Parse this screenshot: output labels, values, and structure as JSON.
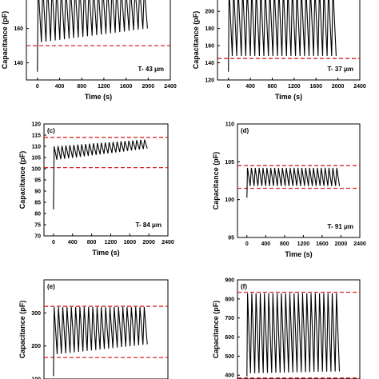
{
  "chart_data": [
    {
      "panel": "",
      "type": "line",
      "xlabel": "Time (s)",
      "ylabel": "Capacitance (pF)",
      "xlim": [
        -200,
        2400
      ],
      "ylim": [
        130,
        185
      ],
      "xticks": [
        "0",
        "400",
        "800",
        "1200",
        "1600",
        "2000",
        "2400"
      ],
      "yticks": [
        "140",
        "160"
      ],
      "annotation": "T- 43 μm",
      "reference_lines": [
        150
      ],
      "signal": {
        "start": 135,
        "low_start": 152,
        "low_end": 160,
        "high_start": 185,
        "high_end": 184,
        "cycles": 24,
        "x_start": 0,
        "x_end": 2000
      }
    },
    {
      "panel": "",
      "type": "line",
      "xlabel": "Time (s)",
      "ylabel": "Capacitance (pF)",
      "xlim": [
        -200,
        2400
      ],
      "ylim": [
        120,
        230
      ],
      "xticks": [
        "0",
        "400",
        "800",
        "1200",
        "1600",
        "2000",
        "2400"
      ],
      "yticks": [
        "120",
        "140",
        "160",
        "180",
        "200"
      ],
      "annotation": "T- 37 μm",
      "reference_lines": [
        145
      ],
      "signal": {
        "start": 130,
        "low_start": 148,
        "low_end": 148,
        "high_start": 228,
        "high_end": 228,
        "cycles": 24,
        "x_start": 0,
        "x_end": 1980
      }
    },
    {
      "panel": "(c)",
      "type": "line",
      "xlabel": "Time (s)",
      "ylabel": "Capacitance (pF)",
      "xlim": [
        -200,
        2400
      ],
      "ylim": [
        70,
        120
      ],
      "xticks": [
        "0",
        "400",
        "800",
        "1200",
        "1600",
        "2000",
        "2400"
      ],
      "yticks": [
        "70",
        "75",
        "80",
        "85",
        "90",
        "95",
        "100",
        "105",
        "110",
        "115",
        "120"
      ],
      "annotation": "T- 84 μm",
      "reference_lines": [
        114,
        100.5
      ],
      "signal": {
        "start": 82,
        "low_start": 104,
        "low_end": 109,
        "high_start": 110,
        "high_end": 113,
        "cycles": 24,
        "x_start": 0,
        "x_end": 1980
      }
    },
    {
      "panel": "(d)",
      "type": "line",
      "xlabel": "Time (s)",
      "ylabel": "Capacitance (pF)",
      "xlim": [
        -200,
        2400
      ],
      "ylim": [
        95,
        110
      ],
      "xticks": [
        "0",
        "400",
        "800",
        "1200",
        "1600",
        "2000",
        "2400"
      ],
      "yticks": [
        "95",
        "100",
        "105",
        "110"
      ],
      "annotation": "T- 91 μm",
      "reference_lines": [
        104.5,
        101.5
      ],
      "signal": {
        "start": 100.3,
        "low_start": 101.8,
        "low_end": 101.8,
        "high_start": 104.2,
        "high_end": 104.2,
        "cycles": 24,
        "x_start": 0,
        "x_end": 1980
      }
    },
    {
      "panel": "(e)",
      "type": "line",
      "xlabel": "",
      "ylabel": "Capacitance (pF)",
      "xlim": [
        -200,
        2400
      ],
      "ylim": [
        100,
        400
      ],
      "xticks": [],
      "yticks": [
        "300",
        "200",
        "100"
      ],
      "annotation": "",
      "reference_lines": [
        320,
        165
      ],
      "signal": {
        "start": 110,
        "low_start": 175,
        "low_end": 205,
        "high_start": 318,
        "high_end": 318,
        "cycles": 22,
        "x_start": 0,
        "x_end": 1980
      }
    },
    {
      "panel": "(f)",
      "type": "line",
      "xlabel": "",
      "ylabel": "Capacitance (pF)",
      "xlim": [
        -200,
        2400
      ],
      "ylim": [
        380,
        900
      ],
      "xticks": [],
      "yticks": [
        "900",
        "800",
        "700",
        "600",
        "500",
        "400"
      ],
      "annotation": "",
      "reference_lines": [
        835,
        385
      ],
      "signal": {
        "start": 395,
        "low_start": 410,
        "low_end": 420,
        "high_start": 830,
        "high_end": 830,
        "cycles": 22,
        "x_start": 0,
        "x_end": 1980
      }
    }
  ]
}
